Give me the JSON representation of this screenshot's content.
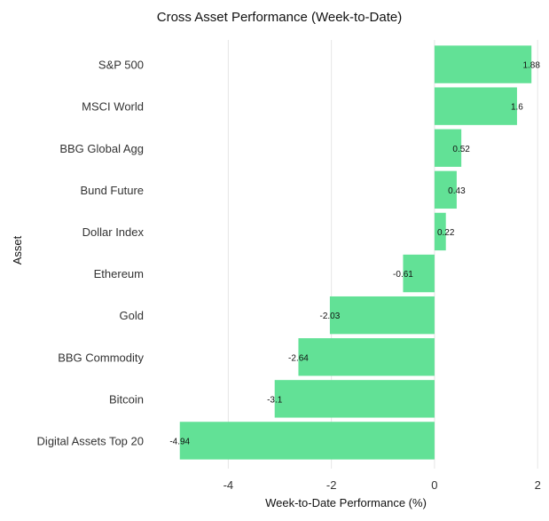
{
  "chart_data": {
    "type": "bar",
    "orientation": "horizontal",
    "title": "Cross Asset Performance (Week-to-Date)",
    "xlabel": "Week-to-Date Performance (%)",
    "ylabel": "Asset",
    "categories": [
      "S&P 500",
      "MSCI World",
      "BBG Global Agg",
      "Bund Future",
      "Dollar Index",
      "Ethereum",
      "Gold",
      "BBG Commodity",
      "Bitcoin",
      "Digital Assets Top 20"
    ],
    "values": [
      1.88,
      1.6,
      0.52,
      0.43,
      0.22,
      -0.61,
      -2.03,
      -2.64,
      -3.1,
      -4.94
    ],
    "data_labels": [
      "1.88",
      "1.6",
      "0.52",
      "0.43",
      "0.22",
      "-0.61",
      "-2.03",
      "-2.64",
      "-3.1",
      "-4.94"
    ],
    "xlim": [
      -5.4,
      2.1
    ],
    "xticks": [
      -4,
      -2,
      0,
      2
    ],
    "xtick_labels": [
      "-4",
      "-2",
      "0",
      "2"
    ],
    "grid": "vertical",
    "legend": "none",
    "bar_color": "#62e196"
  }
}
